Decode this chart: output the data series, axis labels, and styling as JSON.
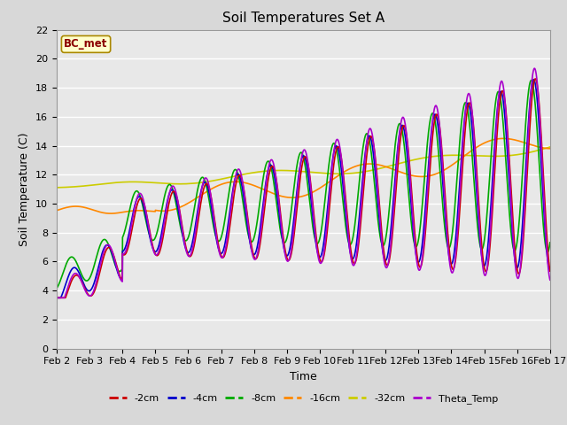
{
  "title": "Soil Temperatures Set A",
  "xlabel": "Time",
  "ylabel": "Soil Temperature (C)",
  "annotation": "BC_met",
  "ylim": [
    0,
    22
  ],
  "xlim": [
    0,
    15
  ],
  "x_tick_labels": [
    "Feb 2",
    "Feb 3",
    "Feb 4",
    "Feb 5",
    "Feb 6",
    "Feb 7",
    "Feb 8",
    "Feb 9",
    "Feb 10",
    "Feb 11",
    "Feb 12",
    "Feb 13",
    "Feb 14",
    "Feb 15",
    "Feb 16",
    "Feb 17"
  ],
  "series": {
    "-2cm": {
      "color": "#cc0000",
      "lw": 1.2
    },
    "-4cm": {
      "color": "#0000cc",
      "lw": 1.2
    },
    "-8cm": {
      "color": "#00aa00",
      "lw": 1.2
    },
    "-16cm": {
      "color": "#ff8800",
      "lw": 1.2
    },
    "-32cm": {
      "color": "#cccc00",
      "lw": 1.2
    },
    "Theta_Temp": {
      "color": "#aa00cc",
      "lw": 1.2
    }
  },
  "bg_color": "#d8d8d8",
  "plot_bg": "#e8e8e8",
  "title_fontsize": 11,
  "axis_fontsize": 9,
  "tick_fontsize": 8
}
